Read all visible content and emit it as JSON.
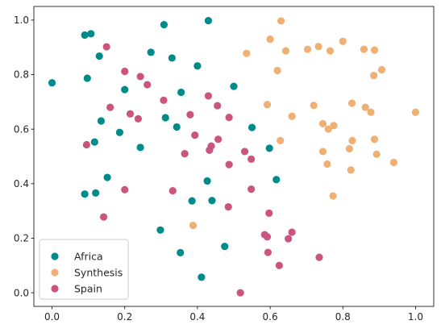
{
  "chart_data": {
    "type": "scatter",
    "title": "",
    "xlabel": "",
    "ylabel": "",
    "xlim": [
      -0.05,
      1.05
    ],
    "ylim": [
      -0.05,
      1.05
    ],
    "grid": false,
    "legend_position": "lower-left",
    "xticks": [
      "0.0",
      "0.2",
      "0.4",
      "0.6",
      "0.8",
      "1.0"
    ],
    "yticks": [
      "0.0",
      "0.2",
      "0.4",
      "0.6",
      "0.8",
      "1.0"
    ],
    "series": [
      {
        "name": "Africa",
        "color": "#008b8b",
        "points": [
          [
            0.0,
            0.77
          ],
          [
            0.09,
            0.945
          ],
          [
            0.107,
            0.95
          ],
          [
            0.097,
            0.787
          ],
          [
            0.13,
            0.868
          ],
          [
            0.135,
            0.63
          ],
          [
            0.117,
            0.553
          ],
          [
            0.2,
            0.745
          ],
          [
            0.186,
            0.588
          ],
          [
            0.243,
            0.533
          ],
          [
            0.152,
            0.423
          ],
          [
            0.09,
            0.362
          ],
          [
            0.12,
            0.366
          ],
          [
            0.308,
            0.983
          ],
          [
            0.272,
            0.882
          ],
          [
            0.33,
            0.861
          ],
          [
            0.4,
            0.832
          ],
          [
            0.355,
            0.735
          ],
          [
            0.312,
            0.642
          ],
          [
            0.343,
            0.608
          ],
          [
            0.43,
            0.998
          ],
          [
            0.5,
            0.757
          ],
          [
            0.55,
            0.606
          ],
          [
            0.598,
            0.53
          ],
          [
            0.427,
            0.41
          ],
          [
            0.385,
            0.337
          ],
          [
            0.44,
            0.338
          ],
          [
            0.617,
            0.415
          ],
          [
            0.298,
            0.23
          ],
          [
            0.353,
            0.147
          ],
          [
            0.475,
            0.17
          ],
          [
            0.411,
            0.057
          ]
        ]
      },
      {
        "name": "Synthesis",
        "color": "#f0b074",
        "points": [
          [
            0.63,
            0.997
          ],
          [
            0.6,
            0.93
          ],
          [
            0.535,
            0.878
          ],
          [
            0.643,
            0.887
          ],
          [
            0.62,
            0.815
          ],
          [
            0.703,
            0.893
          ],
          [
            0.733,
            0.903
          ],
          [
            0.765,
            0.887
          ],
          [
            0.8,
            0.922
          ],
          [
            0.858,
            0.893
          ],
          [
            0.887,
            0.89
          ],
          [
            0.907,
            0.818
          ],
          [
            0.885,
            0.797
          ],
          [
            0.592,
            0.69
          ],
          [
            0.66,
            0.647
          ],
          [
            0.72,
            0.687
          ],
          [
            0.825,
            0.695
          ],
          [
            0.862,
            0.68
          ],
          [
            0.877,
            0.662
          ],
          [
            1.0,
            0.662
          ],
          [
            0.745,
            0.62
          ],
          [
            0.76,
            0.6
          ],
          [
            0.775,
            0.613
          ],
          [
            0.628,
            0.558
          ],
          [
            0.826,
            0.558
          ],
          [
            0.887,
            0.563
          ],
          [
            0.818,
            0.528
          ],
          [
            0.745,
            0.518
          ],
          [
            0.893,
            0.508
          ],
          [
            0.757,
            0.472
          ],
          [
            0.94,
            0.478
          ],
          [
            0.822,
            0.45
          ],
          [
            0.773,
            0.355
          ],
          [
            0.388,
            0.247
          ]
        ]
      },
      {
        "name": "Spain",
        "color": "#cc5580",
        "points": [
          [
            0.15,
            0.902
          ],
          [
            0.2,
            0.812
          ],
          [
            0.243,
            0.793
          ],
          [
            0.262,
            0.763
          ],
          [
            0.16,
            0.68
          ],
          [
            0.215,
            0.656
          ],
          [
            0.237,
            0.638
          ],
          [
            0.307,
            0.706
          ],
          [
            0.43,
            0.722
          ],
          [
            0.455,
            0.686
          ],
          [
            0.38,
            0.653
          ],
          [
            0.487,
            0.643
          ],
          [
            0.095,
            0.543
          ],
          [
            0.393,
            0.578
          ],
          [
            0.457,
            0.563
          ],
          [
            0.438,
            0.538
          ],
          [
            0.433,
            0.523
          ],
          [
            0.365,
            0.51
          ],
          [
            0.53,
            0.518
          ],
          [
            0.548,
            0.49
          ],
          [
            0.487,
            0.47
          ],
          [
            0.2,
            0.378
          ],
          [
            0.332,
            0.374
          ],
          [
            0.548,
            0.38
          ],
          [
            0.485,
            0.315
          ],
          [
            0.142,
            0.278
          ],
          [
            0.597,
            0.292
          ],
          [
            0.585,
            0.213
          ],
          [
            0.592,
            0.205
          ],
          [
            0.66,
            0.222
          ],
          [
            0.65,
            0.198
          ],
          [
            0.594,
            0.148
          ],
          [
            0.735,
            0.13
          ],
          [
            0.625,
            0.1
          ],
          [
            0.518,
            0.0
          ]
        ]
      }
    ]
  }
}
